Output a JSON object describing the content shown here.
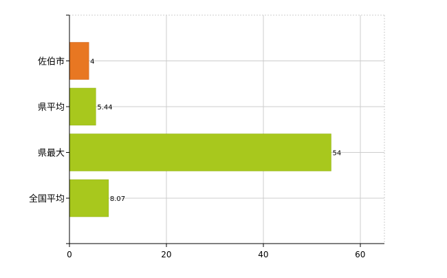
{
  "chart_data": {
    "type": "bar",
    "orientation": "horizontal",
    "categories": [
      "佐伯市",
      "県平均",
      "県最大",
      "全国平均"
    ],
    "values": [
      4,
      5.44,
      54,
      8.07
    ],
    "data_labels": [
      "4",
      "5.44",
      "54",
      "8.07"
    ],
    "bar_colors": [
      "#e87722",
      "#a8c81d",
      "#a8c81d",
      "#a8c81d"
    ],
    "bar_edge_colors": [
      "#c9611a",
      "#8fb014",
      "#8fb014",
      "#8fb014"
    ],
    "xlim": [
      0,
      65
    ],
    "x_ticks": [
      0,
      20,
      40,
      60
    ],
    "x_tick_labels": [
      "0",
      "20",
      "40",
      "60"
    ],
    "grid": true,
    "grid_color": "#cccccc",
    "axis_color": "#000000",
    "legend": "none"
  }
}
